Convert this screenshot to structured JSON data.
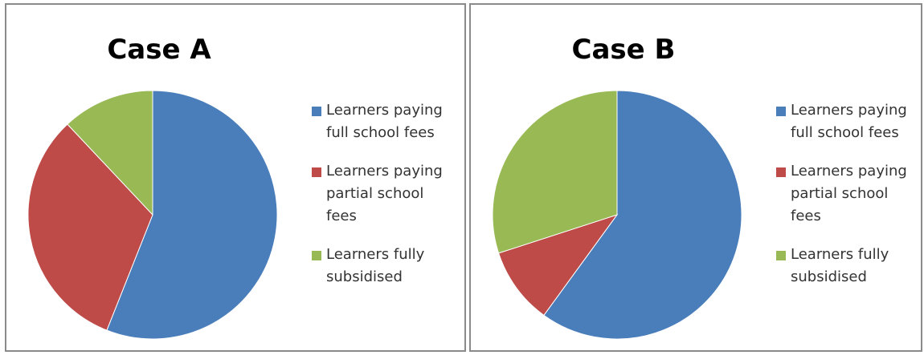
{
  "chart_data": [
    {
      "type": "pie",
      "title": "Case A",
      "categories": [
        "Learners paying full school fees",
        "Learners paying partial school fees",
        "Learners fully subsidised"
      ],
      "values": [
        56,
        32,
        12
      ],
      "colors": [
        "#4a7ebb",
        "#be4b48",
        "#98b954"
      ],
      "legend": "right"
    },
    {
      "type": "pie",
      "title": "Case B",
      "categories": [
        "Learners paying full school fees",
        "Learners paying partial school fees",
        "Learners fully subsidised"
      ],
      "values": [
        60,
        10,
        30
      ],
      "colors": [
        "#4a7ebb",
        "#be4b48",
        "#98b954"
      ],
      "legend": "right"
    }
  ]
}
